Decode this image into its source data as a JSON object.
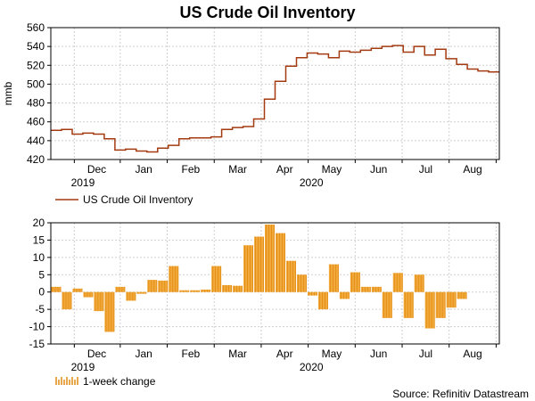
{
  "title": "US Crude Oil Inventory",
  "source": "Source: Refinitiv Datastream",
  "colors": {
    "line": "#a33a10",
    "bar": "#f2a93b",
    "bar_edge": "#e08a10",
    "grid": "#cfcfcf"
  },
  "chart_data": [
    {
      "type": "line",
      "ylabel": "mmb",
      "ylim": [
        420,
        560
      ],
      "yticks": [
        420,
        440,
        460,
        480,
        500,
        520,
        540,
        560
      ],
      "xlim": [
        0,
        42
      ],
      "month_labels": [
        {
          "label": "Dec",
          "pos": 4.3
        },
        {
          "label": "Jan",
          "pos": 8.7
        },
        {
          "label": "Feb",
          "pos": 13.1
        },
        {
          "label": "Mar",
          "pos": 17.5
        },
        {
          "label": "Apr",
          "pos": 21.9
        },
        {
          "label": "May",
          "pos": 26.3
        },
        {
          "label": "Jun",
          "pos": 30.7
        },
        {
          "label": "Jul",
          "pos": 35.1
        },
        {
          "label": "Aug",
          "pos": 39.5
        }
      ],
      "month_boundaries": [
        2.2,
        6.5,
        10.9,
        15.3,
        19.7,
        24.1,
        28.5,
        32.9,
        37.3,
        41.7
      ],
      "year_labels": [
        {
          "label": "2019",
          "pos": 3
        },
        {
          "label": "2020",
          "pos": 24.4
        }
      ],
      "legend": "US Crude Oil Inventory",
      "series": [
        {
          "name": "US Crude Oil Inventory",
          "values": [
            451,
            452,
            447,
            448,
            447,
            442,
            430,
            431,
            429,
            428,
            432,
            435,
            442,
            443,
            443,
            444,
            452,
            454,
            455,
            463,
            484,
            503,
            519,
            528,
            533,
            532,
            528,
            535,
            534,
            536,
            538,
            540,
            541,
            534,
            540,
            531,
            537,
            527,
            521,
            516,
            514,
            513
          ]
        }
      ]
    },
    {
      "type": "bar",
      "ylim": [
        -15,
        20
      ],
      "yticks": [
        -15,
        -10,
        -5,
        0,
        5,
        10,
        15,
        20
      ],
      "xlim": [
        0,
        42
      ],
      "month_labels": [
        {
          "label": "Dec",
          "pos": 4.3
        },
        {
          "label": "Jan",
          "pos": 8.7
        },
        {
          "label": "Feb",
          "pos": 13.1
        },
        {
          "label": "Mar",
          "pos": 17.5
        },
        {
          "label": "Apr",
          "pos": 21.9
        },
        {
          "label": "May",
          "pos": 26.3
        },
        {
          "label": "Jun",
          "pos": 30.7
        },
        {
          "label": "Jul",
          "pos": 35.1
        },
        {
          "label": "Aug",
          "pos": 39.5
        }
      ],
      "month_boundaries": [
        2.2,
        6.5,
        10.9,
        15.3,
        19.7,
        24.1,
        28.5,
        32.9,
        37.3,
        41.7
      ],
      "year_labels": [
        {
          "label": "2019",
          "pos": 3
        },
        {
          "label": "2020",
          "pos": 24.4
        }
      ],
      "legend": "1-week change",
      "series": [
        {
          "name": "1-week change",
          "values": [
            1.5,
            -5,
            1,
            -1.5,
            -5.5,
            -11.5,
            1.5,
            -2.5,
            -0.5,
            3.5,
            3.3,
            7.5,
            0.5,
            0.5,
            0.7,
            7.5,
            2,
            1.8,
            13.5,
            16,
            19.5,
            17,
            9,
            5,
            -1,
            -5,
            8,
            -2,
            5.7,
            1.5,
            1.5,
            -7.5,
            5.5,
            -7.5,
            5,
            -10.5,
            -7.5,
            -4.5,
            -2,
            0,
            0,
            0
          ]
        }
      ]
    }
  ]
}
